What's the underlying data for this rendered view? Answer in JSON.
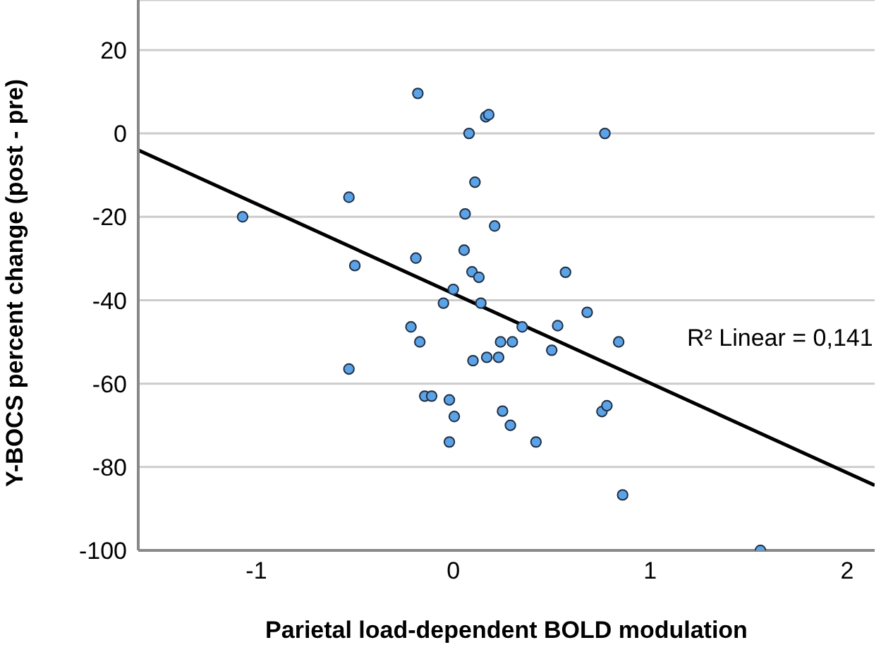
{
  "chart_data": {
    "type": "scatter",
    "xlabel": "Parietal load-dependent BOLD modulation",
    "ylabel": "Y-BOCS percent change (post - pre)",
    "xlim": [
      -1.6,
      2.14
    ],
    "xticks": [
      -1,
      0,
      1,
      2
    ],
    "ylim": [
      -100,
      32
    ],
    "yticks": [
      -100,
      -80,
      -60,
      -40,
      -20,
      0,
      20
    ],
    "grid": "y",
    "annotations": [
      "R² Linear = 0,141"
    ],
    "series": [
      {
        "marker": "circle",
        "color": "#5ba3e6",
        "x": [
          -0.18,
          0.165,
          0.18,
          0.08,
          0.11,
          -0.53,
          -1.07,
          0.06,
          0.21,
          0.055,
          -0.19,
          -0.5,
          0.095,
          0.13,
          0.77,
          0.57,
          0,
          -0.05,
          0.14,
          0.68,
          -0.215,
          0.35,
          0.53,
          -0.17,
          0.24,
          0.3,
          0.84,
          0.5,
          0.1,
          0.17,
          0.23,
          -0.145,
          -0.11,
          -0.02,
          0.005,
          -0.02,
          0.25,
          0.29,
          0.42,
          0.755,
          0.78,
          0.86,
          1.56,
          -0.53
        ],
        "values": [
          9.6,
          4,
          4.5,
          0,
          -11.7,
          -15.3,
          -20,
          -19.3,
          -22.2,
          -28,
          -29.9,
          -31.7,
          -33.2,
          -34.5,
          0,
          -33.3,
          -37.4,
          -40.7,
          -40.7,
          -42.9,
          -46.4,
          -46.4,
          -46.1,
          -50,
          -50,
          -50,
          -50,
          -52,
          -54.5,
          -53.7,
          -53.7,
          -63,
          -63,
          -63.9,
          -67.9,
          -74,
          -66.6,
          -70,
          -74,
          -66.7,
          -65.3,
          -86.7,
          -100,
          -56.5
        ]
      },
      {
        "type": "line",
        "color": "#000000",
        "x": [
          -1.6,
          2.14
        ],
        "values": [
          -4,
          -84.4
        ]
      }
    ]
  }
}
